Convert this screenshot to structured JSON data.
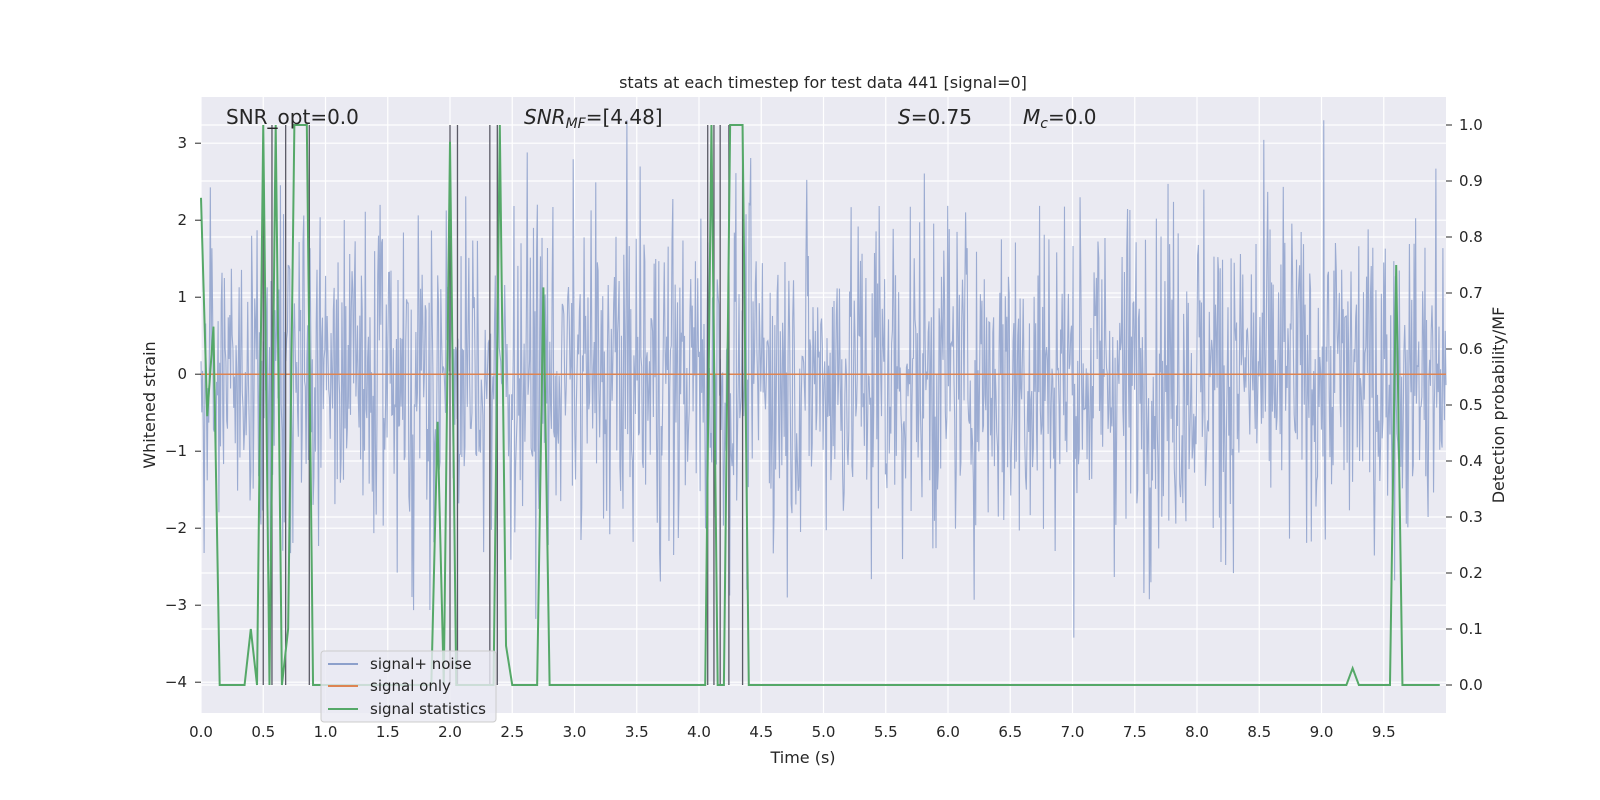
{
  "chart_data": {
    "type": "line",
    "title": "stats at each timestep for test data 441 [signal=0]",
    "xlabel": "Time (s)",
    "ylabel": "Whitened strain",
    "y2label": "Detection probability/MF",
    "xlim": [
      0,
      10
    ],
    "ylim": [
      -4.4,
      3.6
    ],
    "y2lim": [
      -0.05,
      1.05
    ],
    "xticks": [
      "0.0",
      "0.5",
      "1.0",
      "1.5",
      "2.0",
      "2.5",
      "3.0",
      "3.5",
      "4.0",
      "4.5",
      "5.0",
      "5.5",
      "6.0",
      "6.5",
      "7.0",
      "7.5",
      "8.0",
      "8.5",
      "9.0",
      "9.5"
    ],
    "yticks": [
      "−4",
      "−3",
      "−2",
      "−1",
      "0",
      "1",
      "2",
      "3"
    ],
    "y2ticks": [
      "0.0",
      "0.1",
      "0.2",
      "0.3",
      "0.4",
      "0.5",
      "0.6",
      "0.7",
      "0.8",
      "0.9",
      "1.0"
    ],
    "grid": true,
    "legend_position": "bottom-left",
    "annotations": {
      "snr_opt": "SNR_opt=0.0",
      "snr_mf_prefix": "SNR",
      "snr_mf_sub": "MF",
      "snr_mf_value": "=[4.48]",
      "s_prefix": "S",
      "s_value": "=0.75",
      "mc_prefix": "M",
      "mc_sub": "c",
      "mc_value": "=0.0"
    },
    "series": [
      {
        "name": "signal+ noise",
        "color": "#8da0cb",
        "description_of_values": "white noise, amplitude approx ±2.5, extremes near 3.3 and -4.0"
      },
      {
        "name": "signal only",
        "color": "#dd8452",
        "x": [
          0,
          10
        ],
        "y": [
          0,
          0
        ]
      },
      {
        "name": "signal statistics",
        "color": "#55a868",
        "axis": "right",
        "x": [
          0.0,
          0.05,
          0.1,
          0.15,
          0.2,
          0.25,
          0.3,
          0.35,
          0.4,
          0.45,
          0.5,
          0.55,
          0.6,
          0.65,
          0.7,
          0.75,
          0.8,
          0.85,
          0.9,
          0.95,
          1.0,
          1.05,
          1.1,
          1.15,
          1.2,
          1.25,
          1.3,
          1.35,
          1.4,
          1.45,
          1.5,
          1.55,
          1.6,
          1.65,
          1.7,
          1.75,
          1.8,
          1.85,
          1.9,
          1.95,
          2.0,
          2.05,
          2.1,
          2.15,
          2.2,
          2.25,
          2.3,
          2.35,
          2.4,
          2.45,
          2.5,
          2.55,
          2.6,
          2.65,
          2.7,
          2.75,
          2.8,
          2.85,
          2.9,
          2.95,
          3.0,
          3.05,
          3.1,
          3.15,
          3.2,
          3.25,
          3.3,
          3.35,
          3.4,
          3.45,
          3.5,
          3.55,
          3.6,
          3.65,
          3.7,
          3.75,
          3.8,
          3.85,
          3.9,
          3.95,
          4.0,
          4.05,
          4.1,
          4.15,
          4.2,
          4.25,
          4.3,
          4.35,
          4.4,
          4.45,
          4.5,
          4.55,
          4.6,
          4.65,
          4.7,
          4.75,
          4.8,
          4.85,
          4.9,
          4.95,
          5.0,
          5.05,
          5.1,
          5.15,
          5.2,
          5.25,
          5.3,
          5.35,
          5.4,
          5.45,
          5.5,
          5.55,
          5.6,
          5.65,
          5.7,
          5.75,
          5.8,
          5.85,
          5.9,
          5.95,
          6.0,
          6.05,
          6.1,
          6.15,
          6.2,
          6.25,
          6.3,
          6.35,
          6.4,
          6.45,
          6.5,
          6.55,
          6.6,
          6.65,
          6.7,
          6.75,
          6.8,
          6.85,
          6.9,
          6.95,
          7.0,
          7.05,
          7.1,
          7.15,
          7.2,
          7.25,
          7.3,
          7.35,
          7.4,
          7.45,
          7.5,
          7.55,
          7.6,
          7.65,
          7.7,
          7.75,
          7.8,
          7.85,
          7.9,
          7.95,
          8.0,
          8.05,
          8.1,
          8.15,
          8.2,
          8.25,
          8.3,
          8.35,
          8.4,
          8.45,
          8.5,
          8.55,
          8.6,
          8.65,
          8.7,
          8.75,
          8.8,
          8.85,
          8.9,
          8.95,
          9.0,
          9.05,
          9.1,
          9.15,
          9.2,
          9.25,
          9.3,
          9.35,
          9.4,
          9.45,
          9.5,
          9.55,
          9.6,
          9.65,
          9.7,
          9.75,
          9.8,
          9.85,
          9.9,
          9.95
        ],
        "y": [
          0.87,
          0.48,
          0.64,
          0.0,
          0.0,
          0.0,
          0.0,
          0.0,
          0.1,
          0.0,
          1.0,
          0.0,
          1.0,
          0.0,
          0.1,
          1.0,
          1.0,
          1.0,
          0.0,
          0.0,
          0.0,
          0.0,
          0.0,
          0.0,
          0.0,
          0.0,
          0.0,
          0.0,
          0.0,
          0.0,
          0.0,
          0.0,
          0.0,
          0.0,
          0.0,
          0.0,
          0.0,
          0.0,
          0.47,
          0.0,
          0.97,
          0.0,
          0.0,
          0.0,
          0.0,
          0.0,
          0.0,
          0.0,
          1.0,
          0.07,
          0.0,
          0.0,
          0.0,
          0.0,
          0.0,
          0.71,
          0.0,
          0.0,
          0.0,
          0.0,
          0.0,
          0.0,
          0.0,
          0.0,
          0.0,
          0.0,
          0.0,
          0.0,
          0.0,
          0.0,
          0.0,
          0.0,
          0.0,
          0.0,
          0.0,
          0.0,
          0.0,
          0.0,
          0.0,
          0.0,
          0.0,
          0.0,
          1.0,
          0.0,
          0.0,
          1.0,
          1.0,
          1.0,
          0.0,
          0.0,
          0.0,
          0.0,
          0.0,
          0.0,
          0.0,
          0.0,
          0.0,
          0.0,
          0.0,
          0.0,
          0.0,
          0.0,
          0.0,
          0.0,
          0.0,
          0.0,
          0.0,
          0.0,
          0.0,
          0.0,
          0.0,
          0.0,
          0.0,
          0.0,
          0.0,
          0.0,
          0.0,
          0.0,
          0.0,
          0.0,
          0.0,
          0.0,
          0.0,
          0.0,
          0.0,
          0.0,
          0.0,
          0.0,
          0.0,
          0.0,
          0.0,
          0.0,
          0.0,
          0.0,
          0.0,
          0.0,
          0.0,
          0.0,
          0.0,
          0.0,
          0.0,
          0.0,
          0.0,
          0.0,
          0.0,
          0.0,
          0.0,
          0.0,
          0.0,
          0.0,
          0.0,
          0.0,
          0.0,
          0.0,
          0.0,
          0.0,
          0.0,
          0.0,
          0.0,
          0.0,
          0.0,
          0.0,
          0.0,
          0.0,
          0.0,
          0.0,
          0.0,
          0.0,
          0.0,
          0.0,
          0.0,
          0.0,
          0.0,
          0.0,
          0.0,
          0.0,
          0.0,
          0.0,
          0.0,
          0.0,
          0.0,
          0.0,
          0.0,
          0.0,
          0.0,
          0.03,
          0.0,
          0.0,
          0.0,
          0.0,
          0.0,
          0.0,
          0.75,
          0.0,
          0.0,
          0.0,
          0.0,
          0.0,
          0.0,
          0.0
        ]
      }
    ],
    "vertical_lines_x": [
      0.5,
      0.57,
      0.68,
      0.87,
      2.0,
      2.06,
      2.32,
      2.38,
      4.07,
      4.12,
      4.17,
      4.24,
      4.35
    ]
  },
  "legend": {
    "items": [
      "signal+ noise",
      "signal only",
      "signal statistics"
    ]
  }
}
